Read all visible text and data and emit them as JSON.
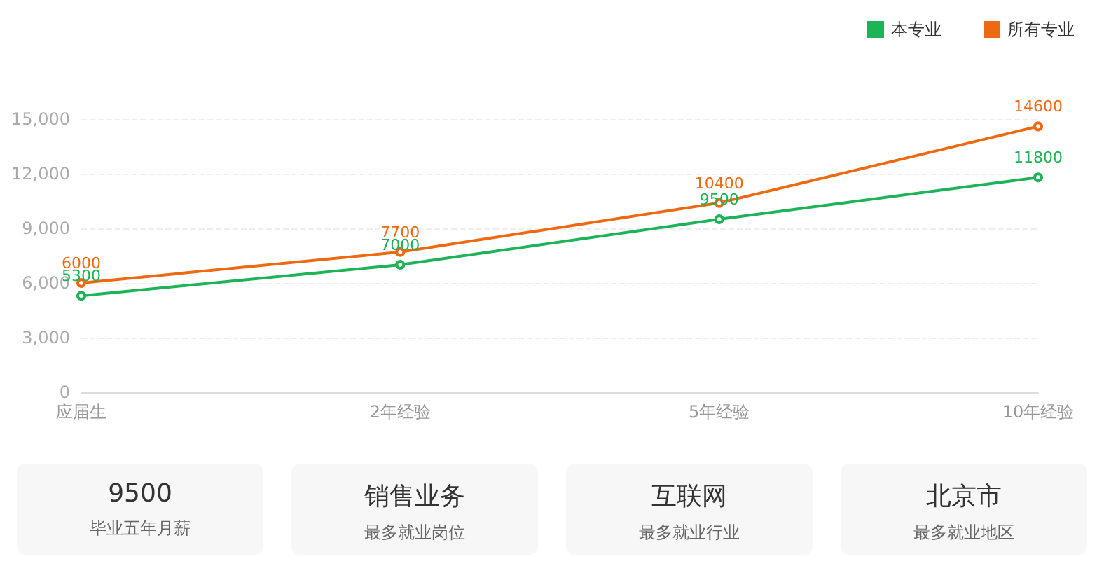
{
  "chart_data": [
    {
      "type": "line",
      "categories": [
        "应届生",
        "2年经验",
        "5年经验",
        "10年经验"
      ],
      "series": [
        {
          "name": "本专业",
          "color": "#1db356",
          "values": [
            5300,
            7000,
            9500,
            11800
          ]
        },
        {
          "name": "所有专业",
          "color": "#ee6a12",
          "values": [
            6000,
            7700,
            10400,
            14600
          ]
        }
      ],
      "ylim": [
        0,
        15000
      ],
      "yticks": [
        {
          "value": 0,
          "label": "0"
        },
        {
          "value": 3000,
          "label": "3,000"
        },
        {
          "value": 6000,
          "label": "6,000"
        },
        {
          "value": 9000,
          "label": "9,000"
        },
        {
          "value": 12000,
          "label": "12,000"
        },
        {
          "value": 15000,
          "label": "15,000"
        }
      ],
      "grid": "y",
      "legend": "top right",
      "marker": "circle",
      "line_style": "solid",
      "data_labels": true
    },
    {
      "type": "other",
      "annotations": [
        "9500",
        "毕业五年月薪",
        "销售业务",
        "最多就业岗位",
        "互联网",
        "最多就业行业",
        "北京市",
        "最多就业地区"
      ]
    }
  ]
}
